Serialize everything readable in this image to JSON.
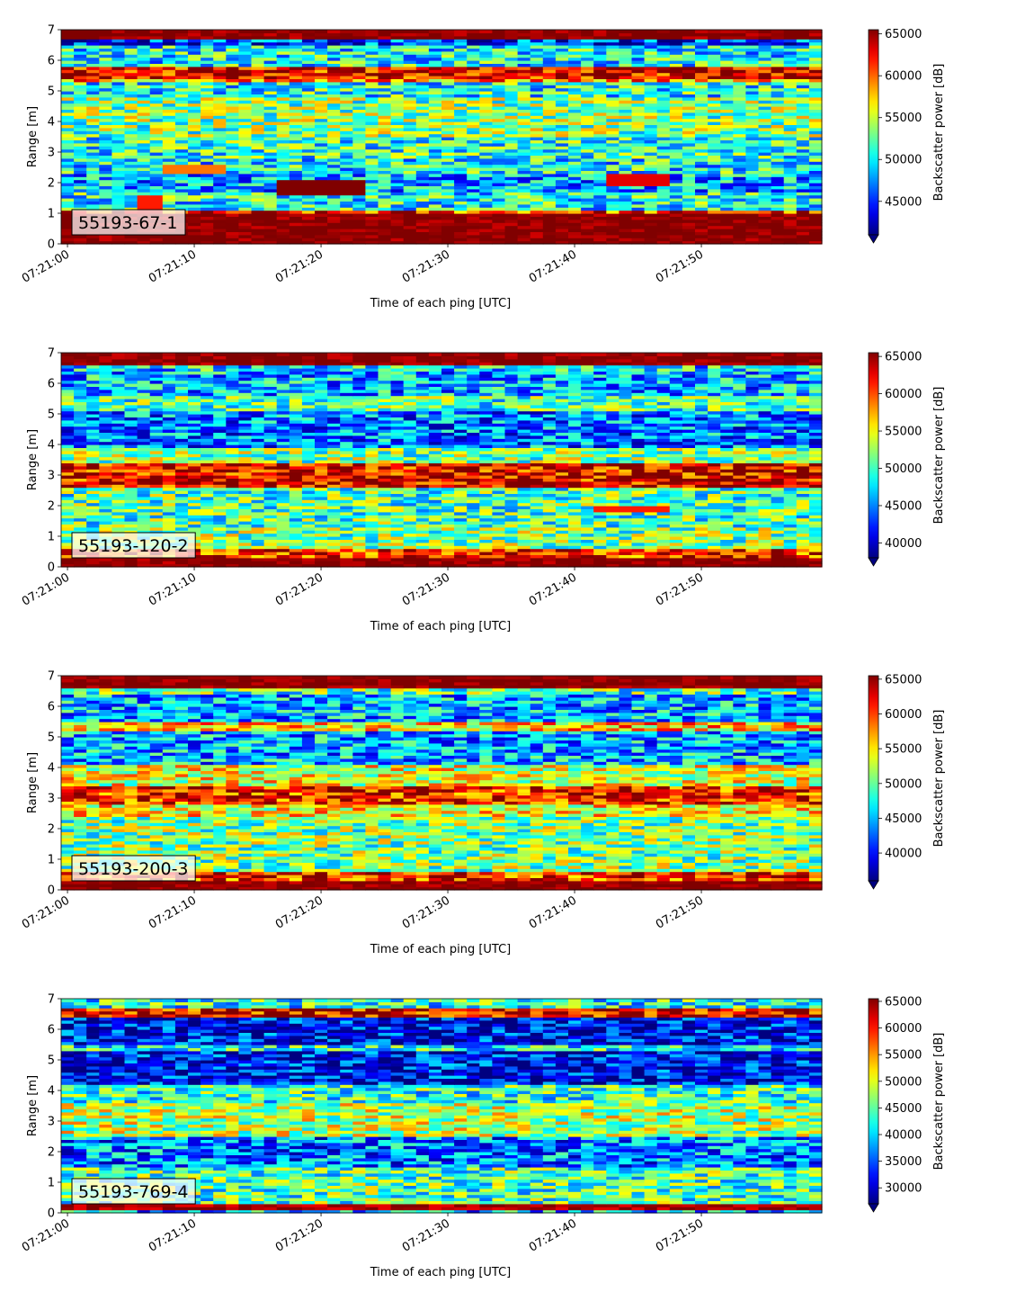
{
  "chart_data": [
    {
      "type": "heatmap",
      "panel_label": "55193-67-1",
      "xlabel": "Time of each ping [UTC]",
      "ylabel": "Range [m]",
      "xticks": [
        "07:21:00",
        "07:21:10",
        "07:21:20",
        "07:21:30",
        "07:21:40",
        "07:21:50"
      ],
      "xlim_seconds": [
        -0.5,
        59.5
      ],
      "yticks": [
        0,
        1,
        2,
        3,
        4,
        5,
        6,
        7
      ],
      "ylim": [
        0,
        7
      ],
      "colorbar": {
        "label": "Backscatter power [dB]",
        "ticks": [
          45000,
          50000,
          55000,
          60000,
          65000
        ],
        "min": 41000,
        "max": 65500,
        "extend": "min",
        "colormap": "jet"
      },
      "bands": [
        {
          "range": [
            0.0,
            0.25
          ],
          "level": 1.0
        },
        {
          "range": [
            0.25,
            1.0
          ],
          "level": 1.0
        },
        {
          "range": [
            1.0,
            1.15
          ],
          "level": 0.82
        },
        {
          "range": [
            1.15,
            1.7
          ],
          "level": 0.4
        },
        {
          "range": [
            1.7,
            2.3
          ],
          "level": 0.3
        },
        {
          "range": [
            2.3,
            2.8
          ],
          "level": 0.38
        },
        {
          "range": [
            2.8,
            3.5
          ],
          "level": 0.42
        },
        {
          "range": [
            3.5,
            4.8
          ],
          "level": 0.5
        },
        {
          "range": [
            4.8,
            5.3
          ],
          "level": 0.4
        },
        {
          "range": [
            5.3,
            5.45
          ],
          "level": 0.72
        },
        {
          "range": [
            5.45,
            5.85
          ],
          "level": 0.9
        },
        {
          "range": [
            5.85,
            6.55
          ],
          "level": 0.38
        },
        {
          "range": [
            6.55,
            6.7
          ],
          "level": 0.18
        },
        {
          "range": [
            6.7,
            7.0
          ],
          "level": 1.0
        }
      ],
      "features": [
        {
          "t": [
            17,
            23
          ],
          "range": [
            1.65,
            2.1
          ],
          "level": 1.0
        },
        {
          "t": [
            8,
            12
          ],
          "range": [
            2.35,
            2.6
          ],
          "level": 0.76
        },
        {
          "t": [
            43,
            47
          ],
          "range": [
            1.9,
            2.25
          ],
          "level": 0.9
        },
        {
          "t": [
            6,
            7
          ],
          "range": [
            1.1,
            1.6
          ],
          "level": 0.85
        }
      ]
    },
    {
      "type": "heatmap",
      "panel_label": "55193-120-2",
      "xlabel": "Time of each ping [UTC]",
      "ylabel": "Range [m]",
      "xticks": [
        "07:21:00",
        "07:21:10",
        "07:21:20",
        "07:21:30",
        "07:21:40",
        "07:21:50"
      ],
      "xlim_seconds": [
        -0.5,
        59.5
      ],
      "yticks": [
        0,
        1,
        2,
        3,
        4,
        5,
        6,
        7
      ],
      "ylim": [
        0,
        7
      ],
      "colorbar": {
        "label": "Backscatter power [dB]",
        "ticks": [
          40000,
          45000,
          50000,
          55000,
          60000,
          65000
        ],
        "min": 38000,
        "max": 65500,
        "extend": "min",
        "colormap": "jet"
      },
      "bands": [
        {
          "range": [
            0.0,
            0.35
          ],
          "level": 1.0
        },
        {
          "range": [
            0.35,
            0.6
          ],
          "level": 0.85
        },
        {
          "range": [
            0.6,
            1.3
          ],
          "level": 0.5
        },
        {
          "range": [
            1.3,
            2.6
          ],
          "level": 0.45
        },
        {
          "range": [
            2.6,
            3.4
          ],
          "level": 0.9
        },
        {
          "range": [
            3.4,
            3.9
          ],
          "level": 0.5
        },
        {
          "range": [
            3.9,
            5.1
          ],
          "level": 0.25
        },
        {
          "range": [
            5.1,
            5.6
          ],
          "level": 0.45
        },
        {
          "range": [
            5.6,
            6.4
          ],
          "level": 0.3
        },
        {
          "range": [
            6.4,
            6.65
          ],
          "level": 0.35
        },
        {
          "range": [
            6.65,
            7.0
          ],
          "level": 1.0
        }
      ],
      "features": [
        {
          "t": [
            42,
            47
          ],
          "range": [
            1.8,
            2.0
          ],
          "level": 0.85
        }
      ]
    },
    {
      "type": "heatmap",
      "panel_label": "55193-200-3",
      "xlabel": "Time of each ping [UTC]",
      "ylabel": "Range [m]",
      "xticks": [
        "07:21:00",
        "07:21:10",
        "07:21:20",
        "07:21:30",
        "07:21:40",
        "07:21:50"
      ],
      "xlim_seconds": [
        -0.5,
        59.5
      ],
      "yticks": [
        0,
        1,
        2,
        3,
        4,
        5,
        6,
        7
      ],
      "ylim": [
        0,
        7
      ],
      "colorbar": {
        "label": "Backscatter power [dB]",
        "ticks": [
          40000,
          45000,
          50000,
          55000,
          60000,
          65000
        ],
        "min": 36000,
        "max": 65500,
        "extend": "min",
        "colormap": "jet"
      },
      "bands": [
        {
          "range": [
            0.0,
            0.35
          ],
          "level": 1.0
        },
        {
          "range": [
            0.35,
            0.6
          ],
          "level": 0.85
        },
        {
          "range": [
            0.6,
            2.4
          ],
          "level": 0.5
        },
        {
          "range": [
            2.4,
            2.8
          ],
          "level": 0.62
        },
        {
          "range": [
            2.8,
            3.4
          ],
          "level": 0.86
        },
        {
          "range": [
            3.4,
            4.1
          ],
          "level": 0.6
        },
        {
          "range": [
            4.1,
            5.2
          ],
          "level": 0.3
        },
        {
          "range": [
            5.2,
            5.5
          ],
          "level": 0.68
        },
        {
          "range": [
            5.5,
            6.45
          ],
          "level": 0.3
        },
        {
          "range": [
            6.45,
            6.65
          ],
          "level": 0.45
        },
        {
          "range": [
            6.65,
            7.0
          ],
          "level": 1.0
        }
      ],
      "features": []
    },
    {
      "type": "heatmap",
      "panel_label": "55193-769-4",
      "xlabel": "Time of each ping [UTC]",
      "ylabel": "Range [m]",
      "xticks": [
        "07:21:00",
        "07:21:10",
        "07:21:20",
        "07:21:30",
        "07:21:40",
        "07:21:50"
      ],
      "xlim_seconds": [
        -0.5,
        59.5
      ],
      "yticks": [
        0,
        1,
        2,
        3,
        4,
        5,
        6,
        7
      ],
      "ylim": [
        0,
        7
      ],
      "colorbar": {
        "label": "Backscatter power [dB]",
        "ticks": [
          30000,
          35000,
          40000,
          45000,
          50000,
          55000,
          60000,
          65000
        ],
        "min": 27000,
        "max": 65500,
        "extend": "min",
        "colormap": "jet"
      },
      "bands": [
        {
          "range": [
            0.0,
            0.1
          ],
          "level": 0.3
        },
        {
          "range": [
            0.1,
            0.3
          ],
          "level": 0.95
        },
        {
          "range": [
            0.3,
            1.5
          ],
          "level": 0.45
        },
        {
          "range": [
            1.5,
            2.5
          ],
          "level": 0.25
        },
        {
          "range": [
            2.5,
            3.6
          ],
          "level": 0.55
        },
        {
          "range": [
            3.6,
            4.2
          ],
          "level": 0.42
        },
        {
          "range": [
            4.2,
            5.3
          ],
          "level": 0.12
        },
        {
          "range": [
            5.3,
            5.5
          ],
          "level": 0.38
        },
        {
          "range": [
            5.5,
            6.4
          ],
          "level": 0.12
        },
        {
          "range": [
            6.4,
            6.75
          ],
          "level": 0.9
        },
        {
          "range": [
            6.75,
            7.0
          ],
          "level": 0.4
        }
      ],
      "features": []
    }
  ]
}
